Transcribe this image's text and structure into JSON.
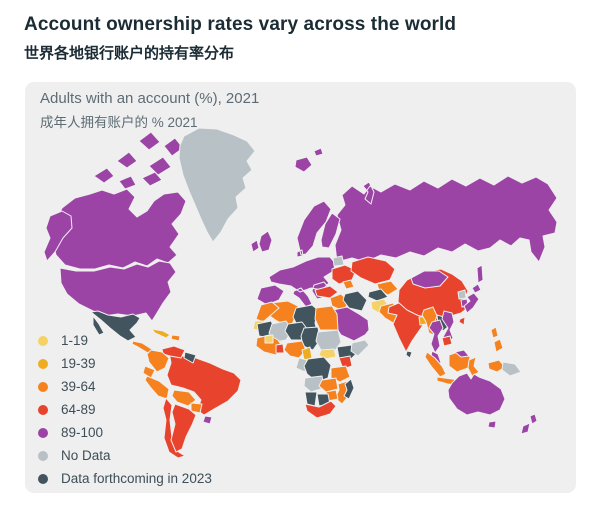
{
  "page": {
    "title": "Account ownership rates vary across the world",
    "title_zh": "世界各地银行账户的持有率分布"
  },
  "panel": {
    "heading": "Adults with an account (%), 2021",
    "heading_zh": "成年人拥有账户的 % 2021",
    "background": "#efefef"
  },
  "chart_data": {
    "type": "choropleth",
    "title": "Adults with an account (%), 2021",
    "title_zh": "成年人拥有账户的 % 2021",
    "unit": "percent of adults with an account, 2021",
    "legend_position": "bottom-left",
    "categories": {
      "c1": {
        "label": "1-19",
        "color": "#f5d266"
      },
      "c2": {
        "label": "19-39",
        "color": "#efac20"
      },
      "c3": {
        "label": "39-64",
        "color": "#f5821f"
      },
      "c4": {
        "label": "64-89",
        "color": "#e8432d"
      },
      "c5": {
        "label": "89-100",
        "color": "#9c44a6"
      },
      "nd": {
        "label": "No Data",
        "color": "#b7c1c6"
      },
      "fc": {
        "label": "Data forthcoming in 2023",
        "color": "#42545e"
      }
    },
    "legend_order": [
      "c1",
      "c2",
      "c3",
      "c4",
      "c5",
      "nd",
      "fc"
    ],
    "regions": [
      {
        "id": "canada",
        "name": "Canada",
        "category": "c5"
      },
      {
        "id": "alaska",
        "name": "United States (Alaska)",
        "category": "c5"
      },
      {
        "id": "usa",
        "name": "United States",
        "category": "c5"
      },
      {
        "id": "greenland",
        "name": "Greenland",
        "category": "nd"
      },
      {
        "id": "iceland",
        "name": "Iceland",
        "category": "c5"
      },
      {
        "id": "svalbard",
        "name": "Svalbard",
        "category": "c5"
      },
      {
        "id": "mexico",
        "name": "Mexico",
        "category": "fc"
      },
      {
        "id": "central-america",
        "name": "Central America",
        "category": "c3"
      },
      {
        "id": "cuba",
        "name": "Cuba",
        "category": "c2"
      },
      {
        "id": "hispaniola",
        "name": "Hispaniola",
        "category": "c3"
      },
      {
        "id": "venezuela",
        "name": "Venezuela",
        "category": "c4"
      },
      {
        "id": "guyanas",
        "name": "Guyanas",
        "category": "fc"
      },
      {
        "id": "colombia",
        "name": "Colombia",
        "category": "c3"
      },
      {
        "id": "ecuador",
        "name": "Ecuador",
        "category": "c3"
      },
      {
        "id": "peru",
        "name": "Peru",
        "category": "c3"
      },
      {
        "id": "brazil",
        "name": "Brazil",
        "category": "c4"
      },
      {
        "id": "bolivia",
        "name": "Bolivia",
        "category": "c3"
      },
      {
        "id": "paraguay",
        "name": "Paraguay",
        "category": "c3"
      },
      {
        "id": "uruguay",
        "name": "Uruguay",
        "category": "c5"
      },
      {
        "id": "chile",
        "name": "Chile",
        "category": "c4"
      },
      {
        "id": "argentina",
        "name": "Argentina",
        "category": "c4"
      },
      {
        "id": "europe",
        "name": "Europe",
        "category": "c5"
      },
      {
        "id": "belarus",
        "name": "Belarus",
        "category": "nd"
      },
      {
        "id": "ukraine",
        "name": "Ukraine",
        "category": "c4"
      },
      {
        "id": "russia",
        "name": "Russia",
        "category": "c5"
      },
      {
        "id": "kazakhstan",
        "name": "Kazakhstan",
        "category": "c4"
      },
      {
        "id": "uzbekistan",
        "name": "Uzbekistan",
        "category": "c3"
      },
      {
        "id": "turkmenistan",
        "name": "Turkmenistan",
        "category": "fc"
      },
      {
        "id": "caucasus",
        "name": "Caucasus",
        "category": "c3"
      },
      {
        "id": "turkey",
        "name": "Turkey",
        "category": "c4"
      },
      {
        "id": "syria-iraq",
        "name": "Syria and Iraq",
        "category": "c3"
      },
      {
        "id": "iran",
        "name": "Iran",
        "category": "fc"
      },
      {
        "id": "arabian-peninsula",
        "name": "Arabian Peninsula",
        "category": "c5"
      },
      {
        "id": "afghanistan",
        "name": "Afghanistan",
        "category": "c1"
      },
      {
        "id": "pakistan",
        "name": "Pakistan",
        "category": "c3"
      },
      {
        "id": "india",
        "name": "India",
        "category": "c4"
      },
      {
        "id": "bangladesh",
        "name": "Bangladesh",
        "category": "c2"
      },
      {
        "id": "sri-lanka",
        "name": "Sri Lanka",
        "category": "fc"
      },
      {
        "id": "china",
        "name": "China",
        "category": "c4"
      },
      {
        "id": "mongolia",
        "name": "Mongolia",
        "category": "c5"
      },
      {
        "id": "north-korea",
        "name": "North Korea",
        "category": "nd"
      },
      {
        "id": "south-korea",
        "name": "South Korea",
        "category": "c5"
      },
      {
        "id": "japan",
        "name": "Japan",
        "category": "c5"
      },
      {
        "id": "taiwan",
        "name": "Taiwan",
        "category": "c4"
      },
      {
        "id": "myanmar",
        "name": "Myanmar",
        "category": "c3"
      },
      {
        "id": "thailand",
        "name": "Thailand",
        "category": "c5"
      },
      {
        "id": "laos",
        "name": "Laos",
        "category": "fc"
      },
      {
        "id": "vietnam",
        "name": "Vietnam",
        "category": "c5"
      },
      {
        "id": "cambodia",
        "name": "Cambodia",
        "category": "c4"
      },
      {
        "id": "malaysia",
        "name": "Malaysia",
        "category": "c5"
      },
      {
        "id": "borneo-malaysia",
        "name": "Malaysia (Borneo)",
        "category": "c5"
      },
      {
        "id": "sumatra",
        "name": "Indonesia (Sumatra)",
        "category": "c3"
      },
      {
        "id": "java",
        "name": "Indonesia (Java)",
        "category": "c3"
      },
      {
        "id": "borneo",
        "name": "Indonesia (Borneo)",
        "category": "c3"
      },
      {
        "id": "sulawesi",
        "name": "Indonesia (Sulawesi)",
        "category": "c3"
      },
      {
        "id": "philippines",
        "name": "Philippines",
        "category": "c3"
      },
      {
        "id": "papua-indonesia",
        "name": "Indonesia (Papua)",
        "category": "c3"
      },
      {
        "id": "papua-new-guinea",
        "name": "Papua New Guinea",
        "category": "nd"
      },
      {
        "id": "australia",
        "name": "Australia",
        "category": "c5"
      },
      {
        "id": "tasmania",
        "name": "Tasmania",
        "category": "c5"
      },
      {
        "id": "new-zealand",
        "name": "New Zealand",
        "category": "c5"
      },
      {
        "id": "morocco",
        "name": "Morocco",
        "category": "c3"
      },
      {
        "id": "western-sahara",
        "name": "Western Sahara",
        "category": "c1"
      },
      {
        "id": "algeria",
        "name": "Algeria",
        "category": "c3"
      },
      {
        "id": "libya",
        "name": "Libya",
        "category": "fc"
      },
      {
        "id": "egypt",
        "name": "Egypt",
        "category": "c3"
      },
      {
        "id": "mauritania",
        "name": "Mauritania",
        "category": "fc"
      },
      {
        "id": "mali",
        "name": "Mali",
        "category": "nd"
      },
      {
        "id": "niger",
        "name": "Niger",
        "category": "fc"
      },
      {
        "id": "chad",
        "name": "Chad",
        "category": "fc"
      },
      {
        "id": "sudan",
        "name": "Sudan",
        "category": "nd"
      },
      {
        "id": "west-africa",
        "name": "West Africa",
        "category": "c3"
      },
      {
        "id": "guinea",
        "name": "Guinea",
        "category": "c1"
      },
      {
        "id": "ghana",
        "name": "Ghana",
        "category": "c4"
      },
      {
        "id": "nigeria",
        "name": "Nigeria",
        "category": "c3"
      },
      {
        "id": "cameroon",
        "name": "Cameroon",
        "category": "c2"
      },
      {
        "id": "south-sudan",
        "name": "South Sudan",
        "category": "c1"
      },
      {
        "id": "ethiopia",
        "name": "Ethiopia",
        "category": "fc"
      },
      {
        "id": "somalia",
        "name": "Somalia",
        "category": "nd"
      },
      {
        "id": "kenya",
        "name": "Kenya",
        "category": "c4"
      },
      {
        "id": "congo-gabon",
        "name": "Congo and Gabon",
        "category": "nd"
      },
      {
        "id": "drc",
        "name": "DR Congo",
        "category": "fc"
      },
      {
        "id": "tanzania",
        "name": "Tanzania",
        "category": "c3"
      },
      {
        "id": "angola",
        "name": "Angola",
        "category": "nd"
      },
      {
        "id": "zambia",
        "name": "Zambia",
        "category": "c3"
      },
      {
        "id": "zimbabwe",
        "name": "Zimbabwe",
        "category": "c3"
      },
      {
        "id": "mozambique",
        "name": "Mozambique",
        "category": "c3"
      },
      {
        "id": "namibia",
        "name": "Namibia",
        "category": "fc"
      },
      {
        "id": "botswana",
        "name": "Botswana",
        "category": "fc"
      },
      {
        "id": "south-africa",
        "name": "South Africa",
        "category": "c4"
      },
      {
        "id": "madagascar",
        "name": "Madagascar",
        "category": "fc"
      }
    ]
  }
}
